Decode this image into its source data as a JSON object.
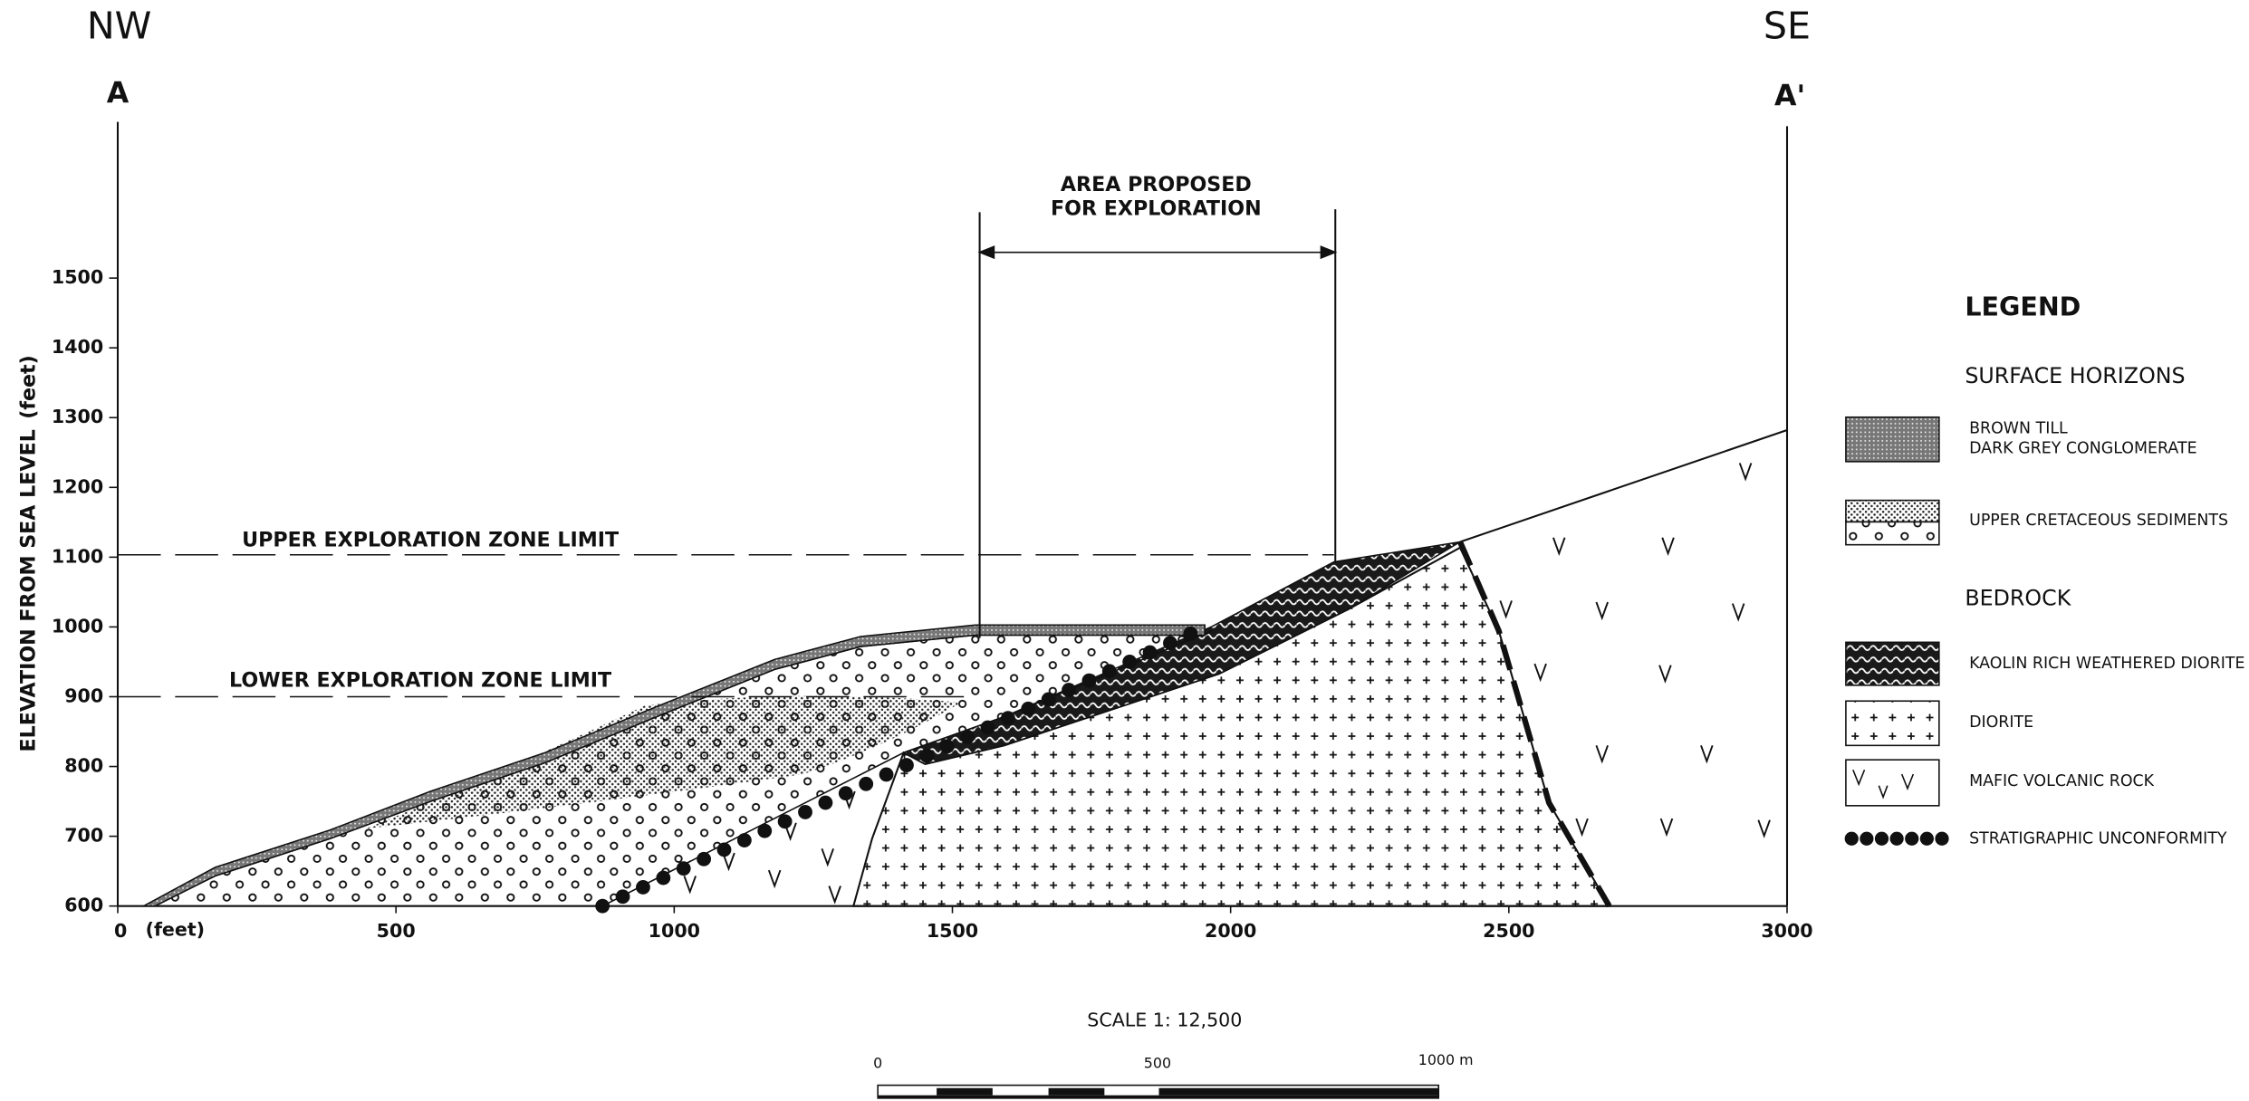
{
  "directions": {
    "left": "NW",
    "right": "SE"
  },
  "section": {
    "start": "A",
    "end": "A'"
  },
  "y_axis": {
    "label": "ELEVATION FROM SEA LEVEL",
    "unit": "(feet)",
    "ticks": [
      600,
      700,
      800,
      900,
      1000,
      1100,
      1200,
      1300,
      1400,
      1500
    ]
  },
  "x_axis": {
    "unit": "(feet)",
    "ticks": [
      0,
      500,
      1000,
      1500,
      2000,
      2500,
      3000
    ]
  },
  "annotations": {
    "proposed_area": [
      "AREA PROPOSED",
      "FOR EXPLORATION"
    ],
    "upper_limit": "UPPER EXPLORATION ZONE LIMIT",
    "lower_limit": "LOWER EXPLORATION ZONE LIMIT"
  },
  "legend": {
    "title": "LEGEND",
    "groups": [
      {
        "heading": "SURFACE HORIZONS",
        "items": [
          [
            "BROWN TILL",
            "DARK GREY CONGLOMERATE"
          ],
          [
            "UPPER CRETACEOUS SEDIMENTS"
          ]
        ]
      },
      {
        "heading": "BEDROCK",
        "items": [
          [
            "KAOLIN RICH WEATHERED DIORITE"
          ],
          [
            "DIORITE"
          ],
          [
            "MAFIC VOLCANIC ROCK"
          ],
          [
            "STRATIGRAPHIC UNCONFORMITY"
          ]
        ]
      }
    ]
  },
  "scale": {
    "label": "SCALE 1: 12,500",
    "bar_labels": [
      "0",
      "500",
      "1000 m"
    ]
  }
}
